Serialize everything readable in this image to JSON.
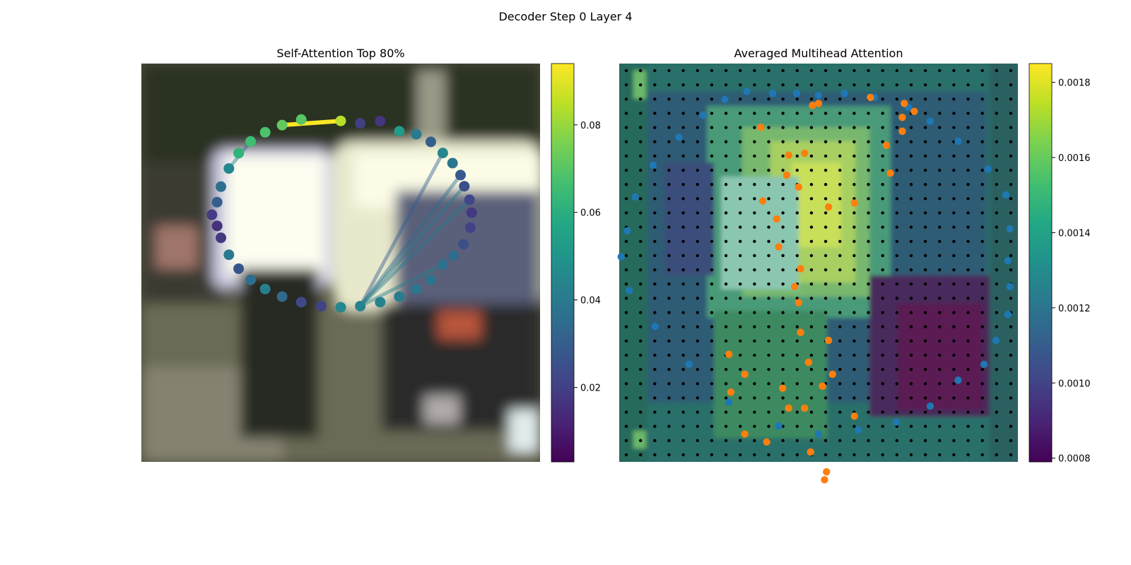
{
  "figure": {
    "suptitle": "Decoder Step 0 Layer 4"
  },
  "chart_data": [
    {
      "type": "scatter",
      "title": "Self-Attention Top 80%",
      "background": "blurred street scene photo (car, cyclist)",
      "colormap": "viridis",
      "colorbar": {
        "min": 0.003,
        "max": 0.094,
        "ticks": [
          0.02,
          0.04,
          0.06,
          0.08
        ],
        "tick_labels": [
          "0.02",
          "0.04",
          "0.06",
          "0.08"
        ]
      },
      "points": [
        {
          "x": 0.0,
          "y": 0.712,
          "v": 0.084
        },
        {
          "x": 0.098,
          "y": 0.7,
          "v": 0.02
        },
        {
          "x": 0.198,
          "y": 0.711,
          "v": 0.017
        },
        {
          "x": 0.294,
          "y": 0.66,
          "v": 0.053
        },
        {
          "x": 0.379,
          "y": 0.645,
          "v": 0.04
        },
        {
          "x": 0.452,
          "y": 0.607,
          "v": 0.03
        },
        {
          "x": 0.512,
          "y": 0.551,
          "v": 0.045
        },
        {
          "x": 0.561,
          "y": 0.5,
          "v": 0.039
        },
        {
          "x": 0.601,
          "y": 0.44,
          "v": 0.029
        },
        {
          "x": 0.62,
          "y": 0.384,
          "v": 0.025
        },
        {
          "x": 0.646,
          "y": 0.316,
          "v": 0.022
        },
        {
          "x": 0.657,
          "y": 0.251,
          "v": 0.018
        },
        {
          "x": 0.65,
          "y": 0.176,
          "v": 0.021
        },
        {
          "x": 0.616,
          "y": 0.092,
          "v": 0.025
        },
        {
          "x": 0.566,
          "y": 0.035,
          "v": 0.035
        },
        {
          "x": 0.512,
          "y": -0.009,
          "v": 0.037
        },
        {
          "x": 0.452,
          "y": -0.086,
          "v": 0.038
        },
        {
          "x": 0.379,
          "y": -0.132,
          "v": 0.039
        },
        {
          "x": 0.294,
          "y": -0.17,
          "v": 0.041
        },
        {
          "x": 0.198,
          "y": -0.198,
          "v": 0.043
        },
        {
          "x": 0.098,
          "y": -0.218,
          "v": 0.043
        },
        {
          "x": 0.0,
          "y": -0.224,
          "v": 0.045
        },
        {
          "x": -0.098,
          "y": -0.218,
          "v": 0.021
        },
        {
          "x": -0.198,
          "y": -0.198,
          "v": 0.023
        },
        {
          "x": -0.294,
          "y": -0.17,
          "v": 0.034
        },
        {
          "x": -0.379,
          "y": -0.132,
          "v": 0.042
        },
        {
          "x": -0.452,
          "y": -0.086,
          "v": 0.036
        },
        {
          "x": -0.512,
          "y": -0.03,
          "v": 0.027
        },
        {
          "x": -0.561,
          "y": 0.04,
          "v": 0.04
        },
        {
          "x": -0.601,
          "y": 0.125,
          "v": 0.018
        },
        {
          "x": -0.62,
          "y": 0.185,
          "v": 0.016
        },
        {
          "x": -0.646,
          "y": 0.241,
          "v": 0.019
        },
        {
          "x": -0.62,
          "y": 0.304,
          "v": 0.03
        },
        {
          "x": -0.601,
          "y": 0.382,
          "v": 0.036
        },
        {
          "x": -0.561,
          "y": 0.473,
          "v": 0.045
        },
        {
          "x": -0.512,
          "y": 0.55,
          "v": 0.062
        },
        {
          "x": -0.452,
          "y": 0.609,
          "v": 0.066
        },
        {
          "x": -0.379,
          "y": 0.655,
          "v": 0.068
        },
        {
          "x": -0.294,
          "y": 0.691,
          "v": 0.072
        },
        {
          "x": -0.198,
          "y": 0.719,
          "v": 0.07
        }
      ],
      "attention_edges": [
        {
          "from": 0,
          "to": 38,
          "w": 0.094
        },
        {
          "from": 20,
          "to": 6,
          "w": 0.03
        },
        {
          "from": 20,
          "to": 8,
          "w": 0.035
        },
        {
          "from": 20,
          "to": 9,
          "w": 0.04
        },
        {
          "from": 20,
          "to": 10,
          "w": 0.04
        },
        {
          "from": 20,
          "to": 15,
          "w": 0.042
        },
        {
          "from": 36,
          "to": 34,
          "w": 0.04
        }
      ]
    },
    {
      "type": "heatmap",
      "title": "Averaged Multihead Attention",
      "background": "attention heatmap (viridis) blended over the same blurred photo",
      "colormap": "viridis",
      "colorbar": {
        "min": 0.00079,
        "max": 0.00185,
        "ticks": [
          0.0008,
          0.001,
          0.0012,
          0.0014,
          0.0016,
          0.0018
        ],
        "tick_labels": [
          "0.0008",
          "0.0010",
          "0.0012",
          "0.0014",
          "0.0016",
          "0.0018"
        ]
      },
      "grid": "black sampling dots, 28 x 28",
      "series": [
        {
          "marker_color": "#1f77b4",
          "points": [
            {
              "x": -0.36,
              "y": -0.86
            },
            {
              "x": -0.23,
              "y": -0.85
            },
            {
              "x": -0.11,
              "y": -0.85
            },
            {
              "x": 0.0,
              "y": -0.84
            },
            {
              "x": 0.13,
              "y": -0.85
            },
            {
              "x": 0.28,
              "y": -0.83
            },
            {
              "x": 0.45,
              "y": -0.78
            },
            {
              "x": 0.56,
              "y": -0.71
            },
            {
              "x": 0.7,
              "y": -0.61
            },
            {
              "x": 0.85,
              "y": -0.47
            },
            {
              "x": 0.94,
              "y": -0.34
            },
            {
              "x": 0.96,
              "y": -0.17
            },
            {
              "x": 0.95,
              "y": -0.01
            },
            {
              "x": 0.96,
              "y": 0.12
            },
            {
              "x": 0.95,
              "y": 0.26
            },
            {
              "x": 0.89,
              "y": 0.39
            },
            {
              "x": 0.83,
              "y": 0.51
            },
            {
              "x": 0.7,
              "y": 0.59
            },
            {
              "x": 0.56,
              "y": 0.72
            },
            {
              "x": 0.39,
              "y": 0.8
            },
            {
              "x": 0.2,
              "y": 0.84
            },
            {
              "x": 0.0,
              "y": 0.86
            },
            {
              "x": -0.2,
              "y": 0.82
            },
            {
              "x": -0.45,
              "y": 0.7
            },
            {
              "x": -0.65,
              "y": 0.51
            },
            {
              "x": -0.82,
              "y": 0.32
            },
            {
              "x": -0.95,
              "y": 0.14
            },
            {
              "x": -0.99,
              "y": -0.03
            },
            {
              "x": -0.96,
              "y": -0.16
            },
            {
              "x": -0.92,
              "y": -0.33
            },
            {
              "x": -0.83,
              "y": -0.49
            },
            {
              "x": -0.7,
              "y": -0.63
            },
            {
              "x": -0.58,
              "y": -0.74
            },
            {
              "x": -0.47,
              "y": -0.82
            }
          ]
        },
        {
          "marker_color": "#ff7f0e",
          "points": [
            {
              "x": 0.26,
              "y": -0.83
            },
            {
              "x": 0.0,
              "y": -0.8
            },
            {
              "x": 0.43,
              "y": -0.8
            },
            {
              "x": -0.03,
              "y": -0.79
            },
            {
              "x": 0.48,
              "y": -0.76
            },
            {
              "x": 0.42,
              "y": -0.66
            },
            {
              "x": 0.42,
              "y": -0.73
            },
            {
              "x": -0.29,
              "y": -0.68
            },
            {
              "x": 0.34,
              "y": -0.59
            },
            {
              "x": -0.07,
              "y": -0.55
            },
            {
              "x": -0.15,
              "y": -0.54
            },
            {
              "x": 0.36,
              "y": -0.45
            },
            {
              "x": -0.16,
              "y": -0.44
            },
            {
              "x": -0.1,
              "y": -0.38
            },
            {
              "x": -0.28,
              "y": -0.31
            },
            {
              "x": -0.21,
              "y": -0.22
            },
            {
              "x": 0.05,
              "y": -0.28
            },
            {
              "x": 0.18,
              "y": -0.3
            },
            {
              "x": -0.2,
              "y": -0.08
            },
            {
              "x": -0.09,
              "y": 0.03
            },
            {
              "x": -0.12,
              "y": 0.12
            },
            {
              "x": -0.1,
              "y": 0.2
            },
            {
              "x": -0.09,
              "y": 0.35
            },
            {
              "x": 0.05,
              "y": 0.39
            },
            {
              "x": -0.05,
              "y": 0.5
            },
            {
              "x": 0.07,
              "y": 0.56
            },
            {
              "x": 0.02,
              "y": 0.62
            },
            {
              "x": -0.18,
              "y": 0.63
            },
            {
              "x": -0.37,
              "y": 0.56
            },
            {
              "x": -0.45,
              "y": 0.46
            },
            {
              "x": 0.18,
              "y": 0.77
            },
            {
              "x": -0.07,
              "y": 0.73
            },
            {
              "x": -0.15,
              "y": 0.73
            },
            {
              "x": -0.44,
              "y": 0.65
            },
            {
              "x": -0.37,
              "y": 0.86
            },
            {
              "x": -0.26,
              "y": 0.9
            },
            {
              "x": -0.04,
              "y": 0.95
            },
            {
              "x": 0.04,
              "y": 1.05
            },
            {
              "x": 0.03,
              "y": 1.09
            }
          ]
        }
      ]
    }
  ]
}
